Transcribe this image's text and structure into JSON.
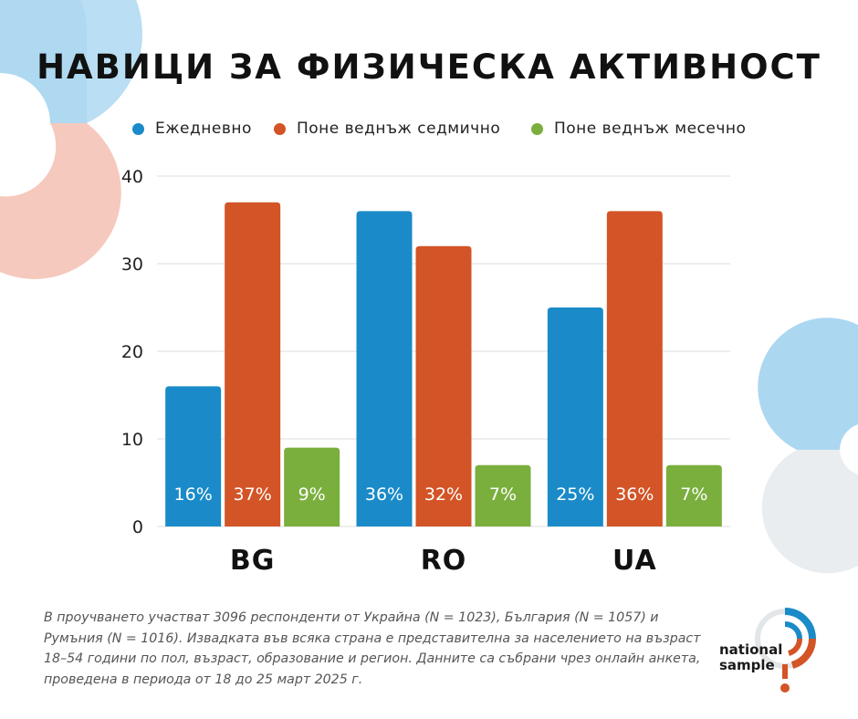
{
  "title": "НАВИЦИ ЗА ФИЗИЧЕСКА АКТИВНОСТ",
  "colors": {
    "daily": "#1a8bc8",
    "weekly": "#d35426",
    "monthly": "#7aaf3e"
  },
  "chart_data": {
    "type": "bar",
    "categories": [
      "BG",
      "RO",
      "UA"
    ],
    "series": [
      {
        "name": "Ежедневно",
        "values": [
          16,
          36,
          25
        ],
        "labels": [
          "16%",
          "36%",
          "25%"
        ],
        "color": "#1a8bc8"
      },
      {
        "name": "Поне веднъж седмично",
        "values": [
          37,
          32,
          36
        ],
        "labels": [
          "37%",
          "32%",
          "36%"
        ],
        "color": "#d35426"
      },
      {
        "name": "Поне веднъж месечно",
        "values": [
          9,
          7,
          7
        ],
        "labels": [
          "9%",
          "7%",
          "7%"
        ],
        "color": "#7aaf3e"
      }
    ],
    "ylim": [
      0,
      40
    ],
    "yticks": [
      "0",
      "10",
      "20",
      "30",
      "40"
    ],
    "grid": true,
    "legend_position": "top"
  },
  "footnote": "В проучването участват 3096 респонденти от Украйна (N = 1023), България (N = 1057) и Румъния (N = 1016). Извадката във всяка страна е представителна за населението на възраст 18–54 години по пол, възраст, образование и регион. Данните са събрани чрез онлайн анкета, проведена в периода от 18 до 25 март 2025 г.",
  "logo": {
    "line1": "national",
    "line2": "sample",
    "icon": "national-sample-logo-icon"
  }
}
